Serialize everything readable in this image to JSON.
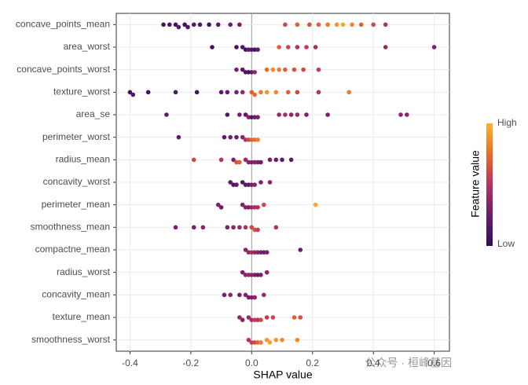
{
  "chart_data": {
    "type": "beeswarm",
    "x_label": "SHAP value",
    "xlim": [
      -0.445,
      0.65
    ],
    "xticks": [
      -0.4,
      -0.2,
      {
        "value": 0,
        "label": "0.0"
      },
      0.2,
      0.4,
      0.6
    ],
    "grid": true,
    "colorbar_title": "Feature value",
    "colorbar_high": "High",
    "colorbar_low": "Low",
    "colorscale": [
      "#2b0f5c",
      "#6a1c6e",
      "#b8315d",
      "#ec6a2b",
      "#fdb42f"
    ],
    "watermark": "公众号 · 桓峰基因",
    "series": [
      {
        "name": "concave_points_mean",
        "values": [
          -0.29,
          -0.27,
          -0.25,
          -0.24,
          -0.22,
          -0.21,
          -0.19,
          -0.17,
          -0.14,
          -0.11,
          -0.07,
          -0.04,
          0.11,
          0.15,
          0.19,
          0.22,
          0.25,
          0.28,
          0.3,
          0.33,
          0.36,
          0.4,
          0.44
        ],
        "feature_values": [
          0.1,
          0.15,
          0.1,
          0.2,
          0.1,
          0.15,
          0.2,
          0.15,
          0.1,
          0.2,
          0.25,
          0.3,
          0.6,
          0.7,
          0.65,
          0.7,
          0.8,
          0.9,
          0.95,
          0.85,
          0.7,
          0.6,
          0.5
        ]
      },
      {
        "name": "area_worst",
        "values": [
          -0.13,
          -0.05,
          -0.03,
          -0.02,
          -0.01,
          0,
          0.01,
          0.02,
          0.09,
          0.12,
          0.15,
          0.18,
          0.21,
          0.44,
          0.6
        ],
        "feature_values": [
          0.1,
          0.1,
          0.15,
          0.1,
          0.2,
          0.15,
          0.1,
          0.2,
          0.7,
          0.6,
          0.5,
          0.55,
          0.45,
          0.4,
          0.3
        ]
      },
      {
        "name": "concave_points_worst",
        "values": [
          -0.05,
          -0.03,
          -0.02,
          -0.01,
          0,
          0.01,
          0.05,
          0.07,
          0.09,
          0.11,
          0.14,
          0.17,
          0.22
        ],
        "feature_values": [
          0.3,
          0.2,
          0.15,
          0.1,
          0.2,
          0.4,
          0.75,
          0.85,
          0.8,
          0.7,
          0.65,
          0.6,
          0.55
        ]
      },
      {
        "name": "texture_worst",
        "values": [
          -0.4,
          -0.39,
          -0.34,
          -0.25,
          -0.18,
          -0.1,
          -0.08,
          -0.05,
          -0.03,
          0,
          0.01,
          0.03,
          0.05,
          0.08,
          0.12,
          0.15,
          0.22,
          0.32
        ],
        "feature_values": [
          0.1,
          0.15,
          0.1,
          0.15,
          0.1,
          0.2,
          0.25,
          0.3,
          0.4,
          0.7,
          0.75,
          0.8,
          0.9,
          0.85,
          0.7,
          0.6,
          0.5,
          0.8
        ]
      },
      {
        "name": "area_se",
        "values": [
          -0.28,
          -0.08,
          -0.04,
          -0.02,
          -0.01,
          0,
          0.01,
          0.02,
          0.09,
          0.11,
          0.13,
          0.15,
          0.18,
          0.25,
          0.49,
          0.51
        ],
        "feature_values": [
          0.2,
          0.15,
          0.3,
          0.2,
          0.35,
          0.15,
          0.25,
          0.3,
          0.4,
          0.45,
          0.35,
          0.4,
          0.3,
          0.3,
          0.35,
          0.35
        ]
      },
      {
        "name": "perimeter_worst",
        "values": [
          -0.24,
          -0.09,
          -0.07,
          -0.05,
          -0.03,
          -0.02,
          -0.01,
          0,
          0.01,
          0.02
        ],
        "feature_values": [
          0.2,
          0.2,
          0.3,
          0.25,
          0.35,
          0.5,
          0.6,
          0.7,
          0.75,
          0.8
        ]
      },
      {
        "name": "radius_mean",
        "values": [
          -0.19,
          -0.1,
          -0.06,
          -0.05,
          -0.04,
          -0.02,
          -0.01,
          0,
          0.01,
          0.02,
          0.03,
          0.06,
          0.08,
          0.1,
          0.13
        ],
        "feature_values": [
          0.6,
          0.5,
          0.3,
          0.65,
          0.7,
          0.4,
          0.35,
          0.3,
          0.35,
          0.3,
          0.25,
          0.3,
          0.25,
          0.2,
          0.2
        ]
      },
      {
        "name": "concavity_worst",
        "values": [
          -0.07,
          -0.06,
          -0.05,
          -0.03,
          -0.02,
          -0.01,
          0,
          0.01,
          0.03,
          0.06
        ],
        "feature_values": [
          0.2,
          0.15,
          0.2,
          0.15,
          0.2,
          0.2,
          0.3,
          0.35,
          0.3,
          0.35
        ]
      },
      {
        "name": "perimeter_mean",
        "values": [
          -0.11,
          -0.1,
          -0.03,
          -0.02,
          -0.01,
          0,
          0.01,
          0.02,
          0.04,
          0.21
        ],
        "feature_values": [
          0.3,
          0.25,
          0.3,
          0.35,
          0.3,
          0.4,
          0.45,
          0.5,
          0.6,
          0.95
        ]
      },
      {
        "name": "smoothness_mean",
        "values": [
          -0.25,
          -0.19,
          -0.16,
          -0.08,
          -0.06,
          -0.04,
          -0.02,
          0,
          0.01,
          0.02,
          0.08
        ],
        "feature_values": [
          0.3,
          0.3,
          0.35,
          0.3,
          0.35,
          0.4,
          0.5,
          0.6,
          0.65,
          0.55,
          0.5
        ]
      },
      {
        "name": "compactne_mean",
        "values": [
          -0.02,
          -0.01,
          0,
          0.01,
          0.02,
          0.03,
          0.04,
          0.05,
          0.16
        ],
        "feature_values": [
          0.35,
          0.4,
          0.45,
          0.4,
          0.35,
          0.3,
          0.25,
          0.3,
          0.25
        ]
      },
      {
        "name": "radius_worst",
        "values": [
          -0.03,
          -0.02,
          -0.01,
          0,
          0.01,
          0.02,
          0.03,
          0.05
        ],
        "feature_values": [
          0.3,
          0.35,
          0.4,
          0.35,
          0.3,
          0.25,
          0.3,
          0.35
        ]
      },
      {
        "name": "concavity_mean",
        "values": [
          -0.09,
          -0.07,
          -0.04,
          -0.02,
          -0.01,
          0,
          0.01,
          0.04
        ],
        "feature_values": [
          0.3,
          0.35,
          0.3,
          0.35,
          0.3,
          0.3,
          0.35,
          0.4
        ]
      },
      {
        "name": "texture_mean",
        "values": [
          -0.04,
          -0.03,
          -0.01,
          0,
          0.01,
          0.02,
          0.03,
          0.05,
          0.07,
          0.14,
          0.16
        ],
        "feature_values": [
          0.4,
          0.35,
          0.4,
          0.45,
          0.55,
          0.5,
          0.6,
          0.55,
          0.6,
          0.7,
          0.65
        ]
      },
      {
        "name": "smoothness_worst",
        "values": [
          -0.01,
          0,
          0.01,
          0.02,
          0.03,
          0.05,
          0.06,
          0.08,
          0.1,
          0.15
        ],
        "feature_values": [
          0.5,
          0.55,
          0.6,
          0.7,
          0.8,
          0.9,
          0.95,
          0.9,
          0.85,
          0.85
        ]
      }
    ]
  }
}
